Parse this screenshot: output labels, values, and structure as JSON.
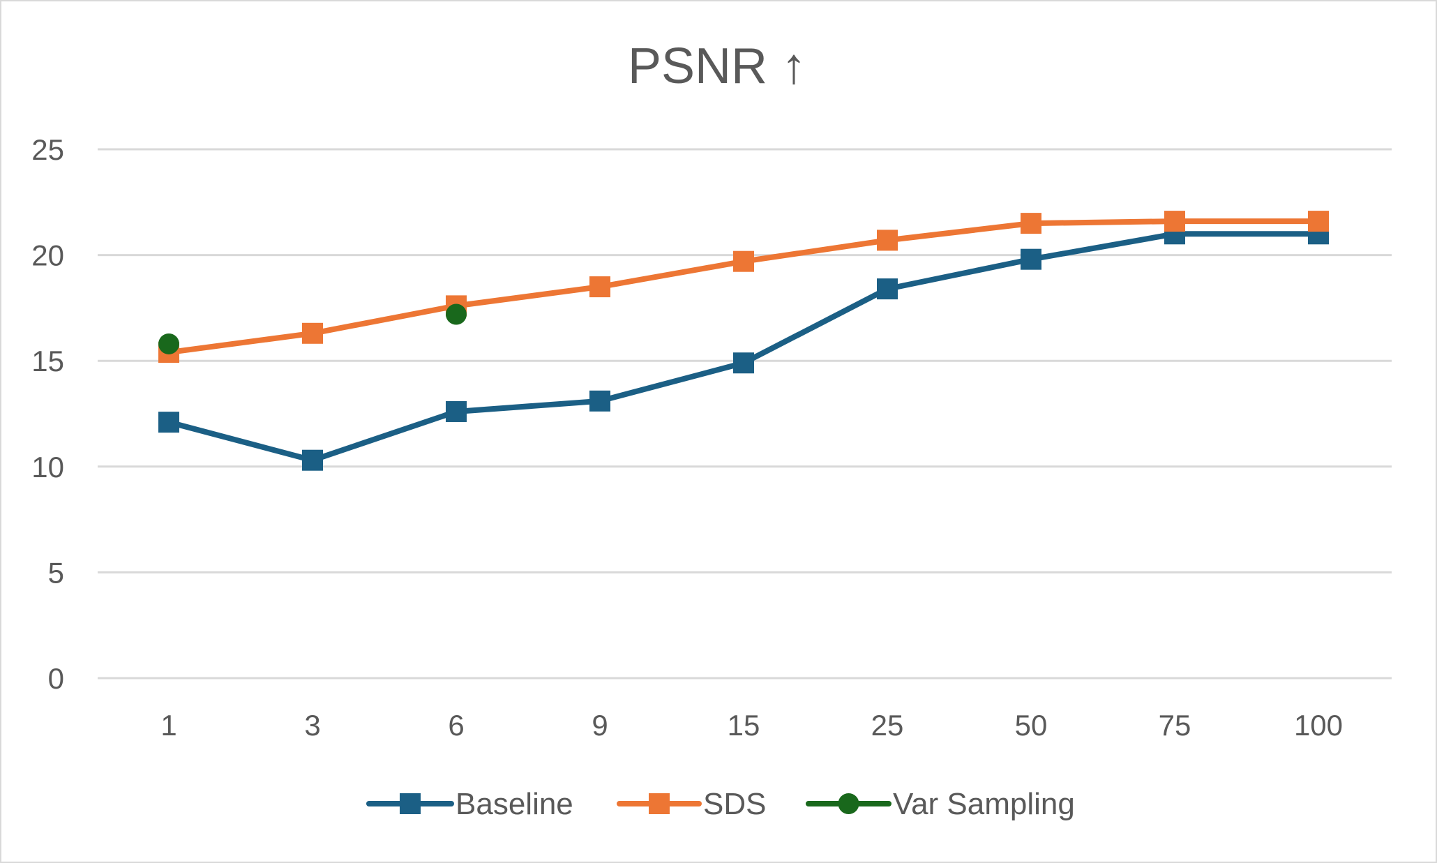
{
  "chart_data": {
    "type": "line",
    "title": "PSNR ↑",
    "xlabel": "",
    "ylabel": "",
    "categories": [
      "1",
      "3",
      "6",
      "9",
      "15",
      "25",
      "50",
      "75",
      "100"
    ],
    "y_ticks": [
      "0",
      "5",
      "10",
      "15",
      "20",
      "25"
    ],
    "ylim": [
      0,
      25
    ],
    "grid": true,
    "legend_position": "bottom",
    "series": [
      {
        "name": "Baseline",
        "color": "#1b5f85",
        "marker": "square",
        "values": [
          12.1,
          10.3,
          12.6,
          13.1,
          14.9,
          18.4,
          19.8,
          21.0,
          21.0
        ]
      },
      {
        "name": "SDS",
        "color": "#ed7634",
        "marker": "square",
        "values": [
          15.4,
          16.3,
          17.6,
          18.5,
          19.7,
          20.7,
          21.5,
          21.6,
          21.6
        ]
      },
      {
        "name": "Var Sampling",
        "color": "#19681c",
        "marker": "circle",
        "values": [
          15.8,
          null,
          17.2,
          null,
          null,
          null,
          null,
          null,
          null
        ]
      }
    ]
  }
}
